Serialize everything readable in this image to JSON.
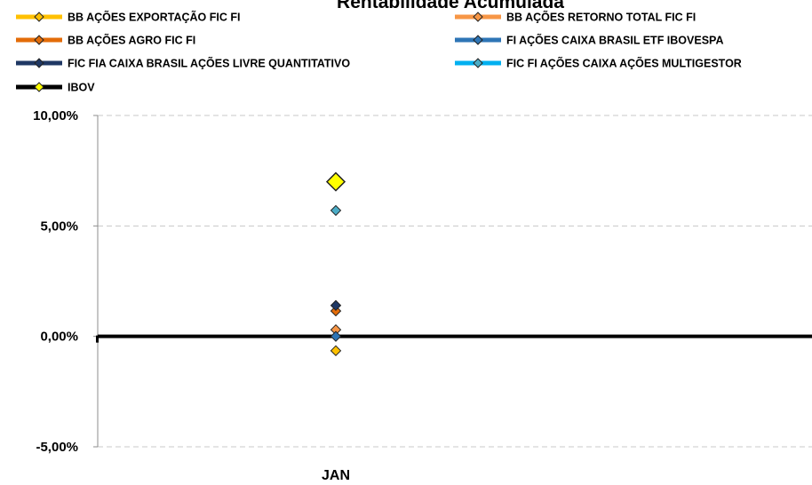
{
  "chart_data": {
    "type": "line",
    "title": "Rentabilidade Acumulada",
    "categories": [
      "JAN"
    ],
    "ylim": [
      -5,
      10
    ],
    "yticks": [
      -5,
      0,
      5,
      10
    ],
    "ytick_labels": [
      "-5,00%",
      "0,00%",
      "5,00%",
      "10,00%"
    ],
    "grid": true,
    "legend_position": "top",
    "series": [
      {
        "name": "BB AÇÕES EXPORTAÇÃO FIC FI",
        "values": [
          -0.65
        ],
        "color": "#FFC000",
        "marker_color": "#FFC000"
      },
      {
        "name": "BB AÇÕES RETORNO TOTAL FIC FI",
        "values": [
          0.3
        ],
        "color": "#F79646",
        "marker_color": "#F79646"
      },
      {
        "name": "BB AÇÕES AGRO FIC FI",
        "values": [
          1.15
        ],
        "color": "#E36C09",
        "marker_color": "#E36C09"
      },
      {
        "name": "FI AÇÕES CAIXA BRASIL ETF IBOVESPA",
        "values": [
          0.0
        ],
        "color": "#2E75B6",
        "marker_color": "#2E75B6"
      },
      {
        "name": "FIC FIA CAIXA BRASIL AÇÕES LIVRE QUANTITATIVO",
        "values": [
          1.4
        ],
        "color": "#1F3864",
        "marker_color": "#1F3864"
      },
      {
        "name": "FIC FI AÇÕES CAIXA AÇÕES MULTIGESTOR",
        "values": [
          5.7
        ],
        "color": "#00B0F0",
        "marker_color": "#4BACC6"
      },
      {
        "name": "IBOV",
        "values": [
          7.0
        ],
        "color": "#000000",
        "marker_color": "#FFFF00"
      }
    ]
  }
}
